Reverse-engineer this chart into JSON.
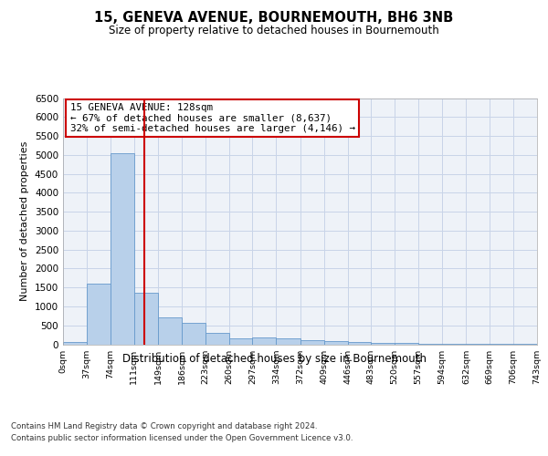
{
  "title": "15, GENEVA AVENUE, BOURNEMOUTH, BH6 3NB",
  "subtitle": "Size of property relative to detached houses in Bournemouth",
  "xlabel": "Distribution of detached houses by size in Bournemouth",
  "ylabel": "Number of detached properties",
  "footer1": "Contains HM Land Registry data © Crown copyright and database right 2024.",
  "footer2": "Contains public sector information licensed under the Open Government Licence v3.0.",
  "property_size": 128,
  "property_label": "15 GENEVA AVENUE: 128sqm",
  "annotation_line1": "← 67% of detached houses are smaller (8,637)",
  "annotation_line2": "32% of semi-detached houses are larger (4,146) →",
  "bar_edges": [
    0,
    37,
    74,
    111,
    149,
    186,
    223,
    260,
    297,
    334,
    372,
    409,
    446,
    483,
    520,
    557,
    594,
    632,
    669,
    706,
    743
  ],
  "bar_heights": [
    55,
    1600,
    5050,
    1350,
    700,
    570,
    290,
    145,
    185,
    145,
    105,
    95,
    65,
    45,
    25,
    8,
    4,
    4,
    4,
    4
  ],
  "bar_color": "#b8d0ea",
  "bar_edgecolor": "#6699cc",
  "redline_color": "#cc0000",
  "annotation_box_color": "#cc0000",
  "grid_color": "#c8d4e8",
  "ylim": [
    0,
    6500
  ],
  "yticks": [
    0,
    500,
    1000,
    1500,
    2000,
    2500,
    3000,
    3500,
    4000,
    4500,
    5000,
    5500,
    6000,
    6500
  ],
  "bg_color": "#eef2f8"
}
